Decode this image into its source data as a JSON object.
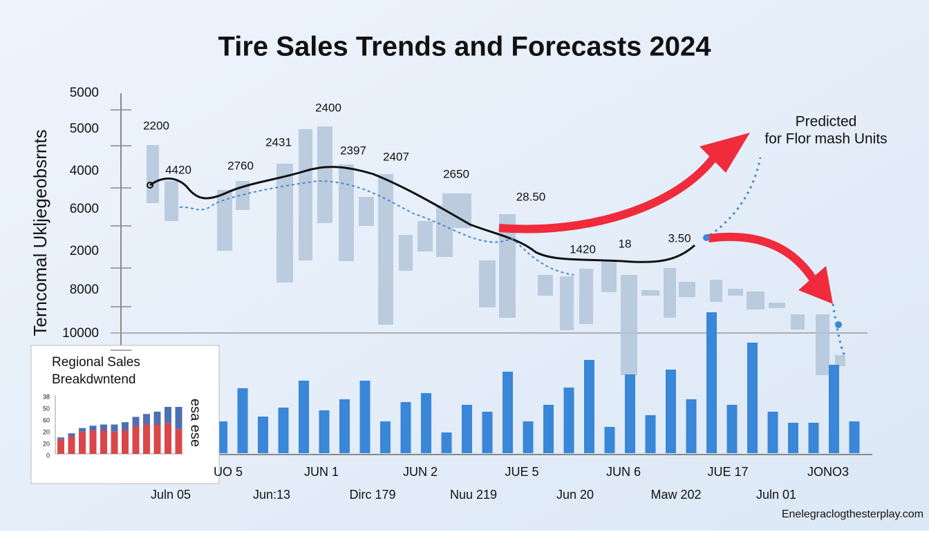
{
  "chart_data": {
    "type": "bar",
    "title": "Tire Sales Trends and Forecasts 2024",
    "y_axis_title": "Terncomal Ukljegeobsrnts",
    "y_axis_labels": [
      "5000",
      "5000",
      "4000",
      "6000",
      "2000",
      "8000",
      "10000"
    ],
    "annotations": [
      "2200",
      "4420",
      "2760",
      "2431",
      "2400",
      "2397",
      "2407",
      "2650",
      "28.50",
      "1420",
      "18",
      "3.50"
    ],
    "forecast_label": [
      "Predicted",
      "for Flor mash Units"
    ],
    "x_labels_top": [
      "UO 5",
      "JUN 1",
      "JUN 2",
      "JUE 5",
      "JUN 6",
      "JUE 17",
      "JONO3"
    ],
    "x_labels_bottom": [
      "Juln 05",
      "Jun:13",
      "Dirc 179",
      "Nuu 219",
      "Jun 20",
      "Maw 202",
      "Juln 01"
    ],
    "color": "#3a86d8",
    "values": [
      46,
      94,
      53,
      66,
      105,
      62,
      78,
      105,
      46,
      74,
      87,
      30,
      70,
      60,
      118,
      46,
      70,
      95,
      135,
      38,
      114,
      55,
      121,
      78,
      204,
      70,
      160,
      60,
      44,
      44,
      128,
      46
    ],
    "ylim": [
      0,
      250
    ],
    "inset": {
      "title": [
        "Regional Sales",
        "Breakdwntend"
      ],
      "y_labels": [
        "38",
        "50",
        "60",
        "20",
        "20",
        "0"
      ],
      "side_label": "esa ese",
      "ylim": [
        0,
        100
      ],
      "series": [
        {
          "color": "#d9474a",
          "values": [
            25,
            30,
            38,
            40,
            40,
            38,
            40,
            47,
            50,
            50,
            52,
            42
          ]
        },
        {
          "color": "#4f6fb5",
          "values": [
            3,
            5,
            6,
            8,
            10,
            12,
            14,
            16,
            18,
            22,
            28,
            38
          ]
        }
      ]
    },
    "watermark": "Enelegraclogthesterplay.com"
  }
}
